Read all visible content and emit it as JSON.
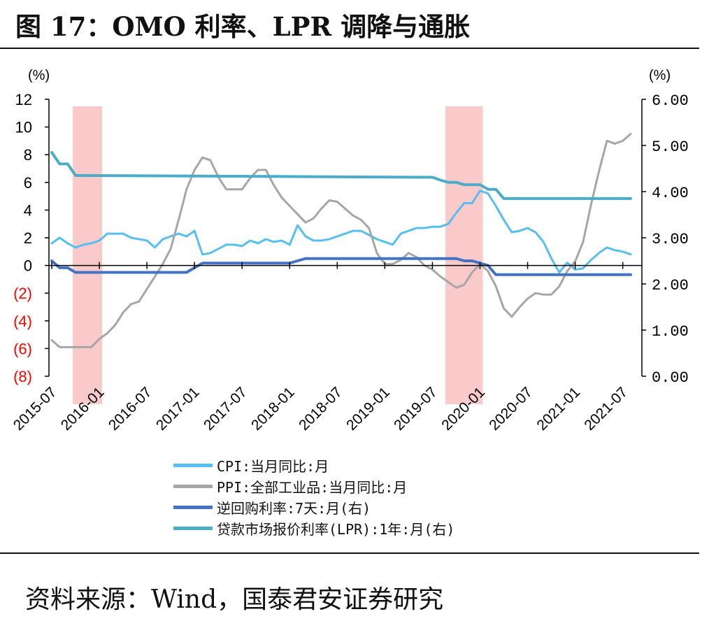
{
  "title": "图 17：OMO 利率、LPR 调降与通胀",
  "source": "资料来源：Wind，国泰君安证券研究",
  "chart_data": {
    "type": "line",
    "y_left": {
      "unit": "(%)",
      "ylim": [
        -8,
        12
      ],
      "ticks": [
        12,
        10,
        8,
        6,
        4,
        2,
        0,
        -2,
        -4,
        -6,
        -8
      ],
      "tick_labels": [
        "12",
        "10",
        "8",
        "6",
        "4",
        "2",
        "0",
        "(2)",
        "(4)",
        "(6)",
        "(8)"
      ],
      "negative_label_color": "#ff0000"
    },
    "y_right": {
      "unit": "(%)",
      "ylim": [
        0,
        6
      ],
      "ticks": [
        6,
        5,
        4,
        3,
        2,
        1,
        0
      ],
      "tick_labels": [
        "6.00",
        "5.00",
        "4.00",
        "3.00",
        "2.00",
        "1.00",
        "0.00"
      ]
    },
    "x_axis": {
      "range": [
        "2015-07",
        "2021-08"
      ],
      "tick_labels": [
        "2015-07",
        "2016-01",
        "2016-07",
        "2017-01",
        "2017-07",
        "2018-01",
        "2018-07",
        "2019-01",
        "2019-07",
        "2020-01",
        "2020-07",
        "2021-01",
        "2021-07"
      ]
    },
    "shaded_periods": [
      [
        "2015-10",
        "2016-01"
      ],
      [
        "2019-09",
        "2020-01"
      ]
    ],
    "series": [
      {
        "name": "CPI:当月同比:月",
        "axis": "left",
        "color": "#55bff0",
        "width": 3,
        "points": [
          [
            "2015-07",
            1.6
          ],
          [
            "2015-08",
            2.0
          ],
          [
            "2015-09",
            1.6
          ],
          [
            "2015-10",
            1.3
          ],
          [
            "2015-11",
            1.5
          ],
          [
            "2015-12",
            1.6
          ],
          [
            "2016-01",
            1.8
          ],
          [
            "2016-02",
            2.3
          ],
          [
            "2016-03",
            2.3
          ],
          [
            "2016-04",
            2.3
          ],
          [
            "2016-05",
            2.0
          ],
          [
            "2016-06",
            1.9
          ],
          [
            "2016-07",
            1.8
          ],
          [
            "2016-08",
            1.3
          ],
          [
            "2016-09",
            1.9
          ],
          [
            "2016-10",
            2.1
          ],
          [
            "2016-11",
            2.3
          ],
          [
            "2016-12",
            2.1
          ],
          [
            "2017-01",
            2.5
          ],
          [
            "2017-02",
            0.8
          ],
          [
            "2017-03",
            0.9
          ],
          [
            "2017-04",
            1.2
          ],
          [
            "2017-05",
            1.5
          ],
          [
            "2017-06",
            1.5
          ],
          [
            "2017-07",
            1.4
          ],
          [
            "2017-08",
            1.8
          ],
          [
            "2017-09",
            1.6
          ],
          [
            "2017-10",
            1.9
          ],
          [
            "2017-11",
            1.7
          ],
          [
            "2017-12",
            1.8
          ],
          [
            "2018-01",
            1.5
          ],
          [
            "2018-02",
            2.9
          ],
          [
            "2018-03",
            2.1
          ],
          [
            "2018-04",
            1.8
          ],
          [
            "2018-05",
            1.8
          ],
          [
            "2018-06",
            1.9
          ],
          [
            "2018-07",
            2.1
          ],
          [
            "2018-08",
            2.3
          ],
          [
            "2018-09",
            2.5
          ],
          [
            "2018-10",
            2.5
          ],
          [
            "2018-11",
            2.2
          ],
          [
            "2018-12",
            1.9
          ],
          [
            "2019-01",
            1.7
          ],
          [
            "2019-02",
            1.5
          ],
          [
            "2019-03",
            2.3
          ],
          [
            "2019-04",
            2.5
          ],
          [
            "2019-05",
            2.7
          ],
          [
            "2019-06",
            2.7
          ],
          [
            "2019-07",
            2.8
          ],
          [
            "2019-08",
            2.8
          ],
          [
            "2019-09",
            3.0
          ],
          [
            "2019-10",
            3.8
          ],
          [
            "2019-11",
            4.5
          ],
          [
            "2019-12",
            4.5
          ],
          [
            "2020-01",
            5.4
          ],
          [
            "2020-02",
            5.2
          ],
          [
            "2020-03",
            4.3
          ],
          [
            "2020-04",
            3.3
          ],
          [
            "2020-05",
            2.4
          ],
          [
            "2020-06",
            2.5
          ],
          [
            "2020-07",
            2.7
          ],
          [
            "2020-08",
            2.4
          ],
          [
            "2020-09",
            1.7
          ],
          [
            "2020-10",
            0.5
          ],
          [
            "2020-11",
            -0.5
          ],
          [
            "2020-12",
            0.2
          ],
          [
            "2021-01",
            -0.3
          ],
          [
            "2021-02",
            -0.2
          ],
          [
            "2021-03",
            0.4
          ],
          [
            "2021-04",
            0.9
          ],
          [
            "2021-05",
            1.3
          ],
          [
            "2021-06",
            1.1
          ],
          [
            "2021-07",
            1.0
          ],
          [
            "2021-08",
            0.8
          ]
        ]
      },
      {
        "name": "PPI:全部工业品:当月同比:月",
        "axis": "left",
        "color": "#a6a6a6",
        "width": 3,
        "points": [
          [
            "2015-07",
            -5.4
          ],
          [
            "2015-08",
            -5.9
          ],
          [
            "2015-09",
            -5.9
          ],
          [
            "2015-10",
            -5.9
          ],
          [
            "2015-11",
            -5.9
          ],
          [
            "2015-12",
            -5.9
          ],
          [
            "2016-01",
            -5.3
          ],
          [
            "2016-02",
            -4.9
          ],
          [
            "2016-03",
            -4.3
          ],
          [
            "2016-04",
            -3.4
          ],
          [
            "2016-05",
            -2.8
          ],
          [
            "2016-06",
            -2.6
          ],
          [
            "2016-07",
            -1.7
          ],
          [
            "2016-08",
            -0.8
          ],
          [
            "2016-09",
            0.1
          ],
          [
            "2016-10",
            1.2
          ],
          [
            "2016-11",
            3.3
          ],
          [
            "2016-12",
            5.5
          ],
          [
            "2017-01",
            6.9
          ],
          [
            "2017-02",
            7.8
          ],
          [
            "2017-03",
            7.6
          ],
          [
            "2017-04",
            6.4
          ],
          [
            "2017-05",
            5.5
          ],
          [
            "2017-06",
            5.5
          ],
          [
            "2017-07",
            5.5
          ],
          [
            "2017-08",
            6.3
          ],
          [
            "2017-09",
            6.9
          ],
          [
            "2017-10",
            6.9
          ],
          [
            "2017-11",
            5.8
          ],
          [
            "2017-12",
            4.9
          ],
          [
            "2018-01",
            4.3
          ],
          [
            "2018-02",
            3.7
          ],
          [
            "2018-03",
            3.1
          ],
          [
            "2018-04",
            3.4
          ],
          [
            "2018-05",
            4.1
          ],
          [
            "2018-06",
            4.7
          ],
          [
            "2018-07",
            4.6
          ],
          [
            "2018-08",
            4.1
          ],
          [
            "2018-09",
            3.6
          ],
          [
            "2018-10",
            3.3
          ],
          [
            "2018-11",
            2.7
          ],
          [
            "2018-12",
            0.9
          ],
          [
            "2019-01",
            0.1
          ],
          [
            "2019-02",
            0.1
          ],
          [
            "2019-03",
            0.4
          ],
          [
            "2019-04",
            0.9
          ],
          [
            "2019-05",
            0.6
          ],
          [
            "2019-06",
            0.0
          ],
          [
            "2019-07",
            -0.3
          ],
          [
            "2019-08",
            -0.8
          ],
          [
            "2019-09",
            -1.2
          ],
          [
            "2019-10",
            -1.6
          ],
          [
            "2019-11",
            -1.4
          ],
          [
            "2019-12",
            -0.5
          ],
          [
            "2020-01",
            0.1
          ],
          [
            "2020-02",
            -0.4
          ],
          [
            "2020-03",
            -1.5
          ],
          [
            "2020-04",
            -3.1
          ],
          [
            "2020-05",
            -3.7
          ],
          [
            "2020-06",
            -3.0
          ],
          [
            "2020-07",
            -2.4
          ],
          [
            "2020-08",
            -2.0
          ],
          [
            "2020-09",
            -2.1
          ],
          [
            "2020-10",
            -2.1
          ],
          [
            "2020-11",
            -1.5
          ],
          [
            "2020-12",
            -0.4
          ],
          [
            "2021-01",
            0.3
          ],
          [
            "2021-02",
            1.7
          ],
          [
            "2021-03",
            4.4
          ],
          [
            "2021-04",
            6.8
          ],
          [
            "2021-05",
            9.0
          ],
          [
            "2021-06",
            8.8
          ],
          [
            "2021-07",
            9.0
          ],
          [
            "2021-08",
            9.5
          ]
        ]
      },
      {
        "name": "逆回购利率:7天:月(右)",
        "axis": "right",
        "color": "#4472c4",
        "width": 4,
        "points": [
          [
            "2015-07",
            2.5
          ],
          [
            "2015-08",
            2.35
          ],
          [
            "2015-09",
            2.35
          ],
          [
            "2015-10",
            2.25
          ],
          [
            "2016-11",
            2.25
          ],
          [
            "2016-12",
            2.25
          ],
          [
            "2017-01",
            2.35
          ],
          [
            "2017-02",
            2.45
          ],
          [
            "2018-01",
            2.45
          ],
          [
            "2018-02",
            2.5
          ],
          [
            "2018-03",
            2.55
          ],
          [
            "2019-09",
            2.55
          ],
          [
            "2019-10",
            2.55
          ],
          [
            "2019-11",
            2.5
          ],
          [
            "2019-12",
            2.5
          ],
          [
            "2020-01",
            2.45
          ],
          [
            "2020-02",
            2.4
          ],
          [
            "2020-03",
            2.2
          ],
          [
            "2021-08",
            2.2
          ]
        ]
      },
      {
        "name": "贷款市场报价利率(LPR):1年:月(右)",
        "axis": "right",
        "color": "#4aacc6",
        "width": 4,
        "points": [
          [
            "2015-07",
            4.85
          ],
          [
            "2015-08",
            4.6
          ],
          [
            "2015-09",
            4.6
          ],
          [
            "2015-10",
            4.35
          ],
          [
            "2019-07",
            4.31
          ],
          [
            "2019-08",
            4.25
          ],
          [
            "2019-09",
            4.2
          ],
          [
            "2019-10",
            4.2
          ],
          [
            "2019-11",
            4.15
          ],
          [
            "2019-12",
            4.15
          ],
          [
            "2020-01",
            4.15
          ],
          [
            "2020-02",
            4.05
          ],
          [
            "2020-03",
            4.05
          ],
          [
            "2020-04",
            3.85
          ],
          [
            "2021-08",
            3.85
          ]
        ]
      }
    ]
  }
}
